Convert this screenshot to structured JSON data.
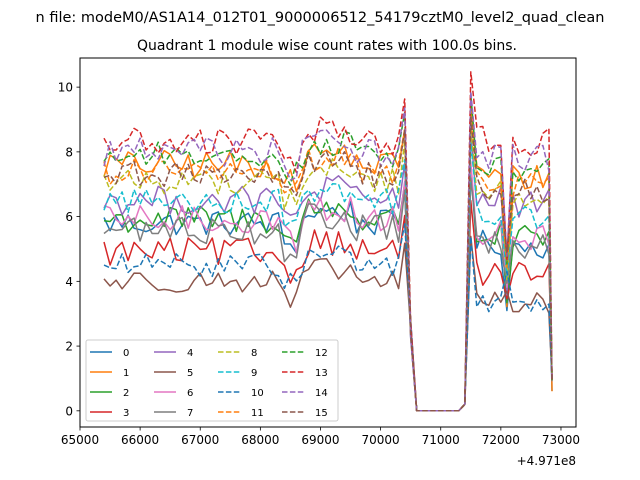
{
  "chart_data": {
    "type": "line",
    "suptitle": "n file: modeM0/AS1A14_012T01_9000006512_54179cztM0_level2_quad_clean",
    "title": "Quadrant 1 module wise count rates with 100.0s bins.",
    "xlabel": "",
    "ylabel": "",
    "x_offset_label": "+4.971e8",
    "xlim": [
      65000,
      73250
    ],
    "ylim": [
      -0.5,
      10.9
    ],
    "x_ticks": [
      65000,
      66000,
      67000,
      68000,
      69000,
      70000,
      71000,
      72000,
      73000
    ],
    "y_ticks": [
      0,
      2,
      4,
      6,
      8,
      10
    ],
    "grid": false,
    "legend_position": "lower-left",
    "legend_columns": 4,
    "x_segments": [
      {
        "start": 65400,
        "end": 70400,
        "step": 100
      },
      {
        "start": 70500,
        "end": 72850,
        "step": 100
      }
    ],
    "series": [
      {
        "name": "0",
        "color": "#1f77b4",
        "style": "solid",
        "level": 5.8,
        "offset": 0.0,
        "amp": 0.4
      },
      {
        "name": "1",
        "color": "#ff7f0e",
        "style": "solid",
        "level": 7.6,
        "offset": 0.3,
        "amp": 0.45
      },
      {
        "name": "2",
        "color": "#2ca02c",
        "style": "solid",
        "level": 5.9,
        "offset": 0.1,
        "amp": 0.45
      },
      {
        "name": "3",
        "color": "#d62728",
        "style": "solid",
        "level": 4.9,
        "offset": 0.0,
        "amp": 0.45
      },
      {
        "name": "4",
        "color": "#9467bd",
        "style": "solid",
        "level": 6.5,
        "offset": 0.6,
        "amp": 0.45
      },
      {
        "name": "5",
        "color": "#8c564b",
        "style": "solid",
        "level": 4.0,
        "offset": 0.0,
        "amp": 0.35
      },
      {
        "name": "6",
        "color": "#e377c2",
        "style": "solid",
        "level": 5.9,
        "offset": 0.2,
        "amp": 0.45
      },
      {
        "name": "7",
        "color": "#7f7f7f",
        "style": "solid",
        "level": 5.6,
        "offset": 0.1,
        "amp": 0.45
      },
      {
        "name": "8",
        "color": "#bcbd22",
        "style": "dashed",
        "level": 7.1,
        "offset": 0.3,
        "amp": 0.4
      },
      {
        "name": "9",
        "color": "#17becf",
        "style": "dashed",
        "level": 6.5,
        "offset": 0.2,
        "amp": 0.4
      },
      {
        "name": "10",
        "color": "#1f77b4",
        "style": "dashed",
        "level": 4.5,
        "offset": -0.6,
        "amp": 0.35
      },
      {
        "name": "11",
        "color": "#ff7f0e",
        "style": "dashed",
        "level": 7.4,
        "offset": 0.3,
        "amp": 0.4
      },
      {
        "name": "12",
        "color": "#2ca02c",
        "style": "dashed",
        "level": 7.9,
        "offset": 0.3,
        "amp": 0.4
      },
      {
        "name": "13",
        "color": "#d62728",
        "style": "dashed",
        "level": 8.3,
        "offset": 0.7,
        "amp": 0.45
      },
      {
        "name": "14",
        "color": "#9467bd",
        "style": "dashed",
        "level": 8.0,
        "offset": 0.5,
        "amp": 0.45
      },
      {
        "name": "15",
        "color": "#8c564b",
        "style": "dashed",
        "level": 7.3,
        "offset": 0.2,
        "amp": 0.4
      }
    ],
    "shared_profile": {
      "gap_start": 70600,
      "gap_end": 71300,
      "gap_value": 0.0,
      "second_segment_peak_x": 71500,
      "second_segment_dip_x": 72100,
      "dip_value": 3.1,
      "end_value": 0.6
    }
  }
}
